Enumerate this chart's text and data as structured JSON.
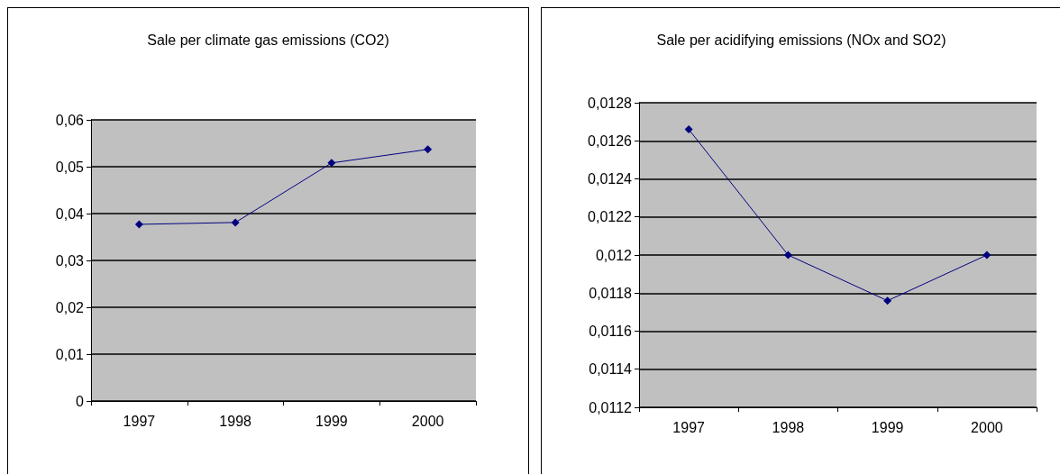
{
  "chart_data": [
    {
      "type": "line",
      "title": "Sale per climate gas emissions (CO2)",
      "categories": [
        "1997",
        "1998",
        "1999",
        "2000"
      ],
      "series": [
        {
          "color": "#000080",
          "values": [
            0.0377,
            0.0381,
            0.0508,
            0.0537
          ]
        }
      ],
      "ylim": [
        0,
        0.06
      ],
      "yticks": [
        0,
        {
          "value": 0.01,
          "label": "0,01"
        },
        {
          "value": 0.02,
          "label": "0,02"
        },
        {
          "value": 0.03,
          "label": "0,03"
        },
        {
          "value": 0.04,
          "label": "0,04"
        },
        {
          "value": 0.05,
          "label": "0,05"
        },
        {
          "value": 0.06,
          "label": "0,06"
        }
      ],
      "grid": "y",
      "marker": "diamond"
    },
    {
      "type": "line",
      "title": "Sale per acidifying emissions (NOx and SO2)",
      "categories": [
        "1997",
        "1998",
        "1999",
        "2000"
      ],
      "series": [
        {
          "color": "#000080",
          "values": [
            0.01266,
            0.012,
            0.01176,
            0.012
          ]
        }
      ],
      "ylim": [
        0.0112,
        0.0128
      ],
      "yticks": [
        {
          "value": 0.0112,
          "label": "0,0112"
        },
        {
          "value": 0.0114,
          "label": "0,0114"
        },
        {
          "value": 0.0116,
          "label": "0,0116"
        },
        {
          "value": 0.0118,
          "label": "0,0118"
        },
        {
          "value": 0.012,
          "label": "0,012"
        },
        {
          "value": 0.0122,
          "label": "0,0122"
        },
        {
          "value": 0.0124,
          "label": "0,0124"
        },
        {
          "value": 0.0126,
          "label": "0,0126"
        },
        {
          "value": 0.0128,
          "label": "0,0128"
        }
      ],
      "grid": "y",
      "marker": "diamond"
    }
  ]
}
